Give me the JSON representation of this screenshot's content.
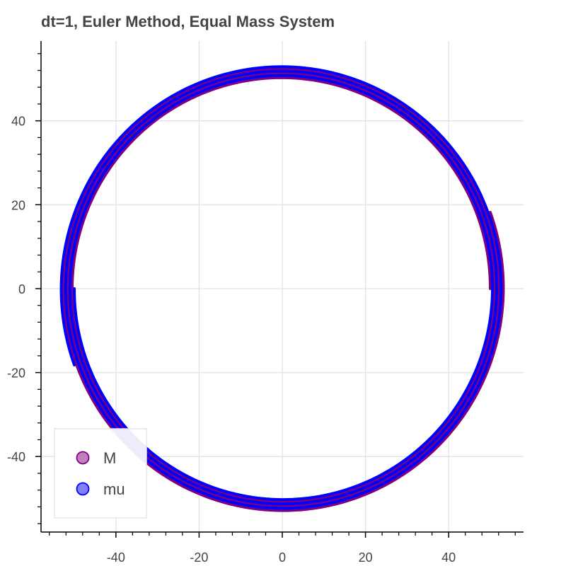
{
  "chart_data": {
    "type": "line",
    "title": "dt=1, Euler Method, Equal Mass System",
    "xlabel": "",
    "ylabel": "",
    "xlim": [
      -58,
      58
    ],
    "ylim": [
      -58,
      59
    ],
    "x_ticks": [
      -40,
      -20,
      0,
      20,
      40
    ],
    "y_ticks": [
      -40,
      -20,
      0,
      20,
      40
    ],
    "grid": true,
    "legend_position": "bottom-left",
    "series": [
      {
        "name": "M",
        "color": "#800080",
        "marker_fill": "#c080c0",
        "spiral": {
          "start_radius": 50,
          "end_radius": 53.2,
          "start_angle_deg": 0,
          "end_angle_deg": 1100
        }
      },
      {
        "name": "mu",
        "color": "#0000ff",
        "marker_fill": "#8080ff",
        "spiral": {
          "start_radius": 50,
          "end_radius": 53.2,
          "start_angle_deg": 180,
          "end_angle_deg": 1280
        }
      }
    ]
  }
}
